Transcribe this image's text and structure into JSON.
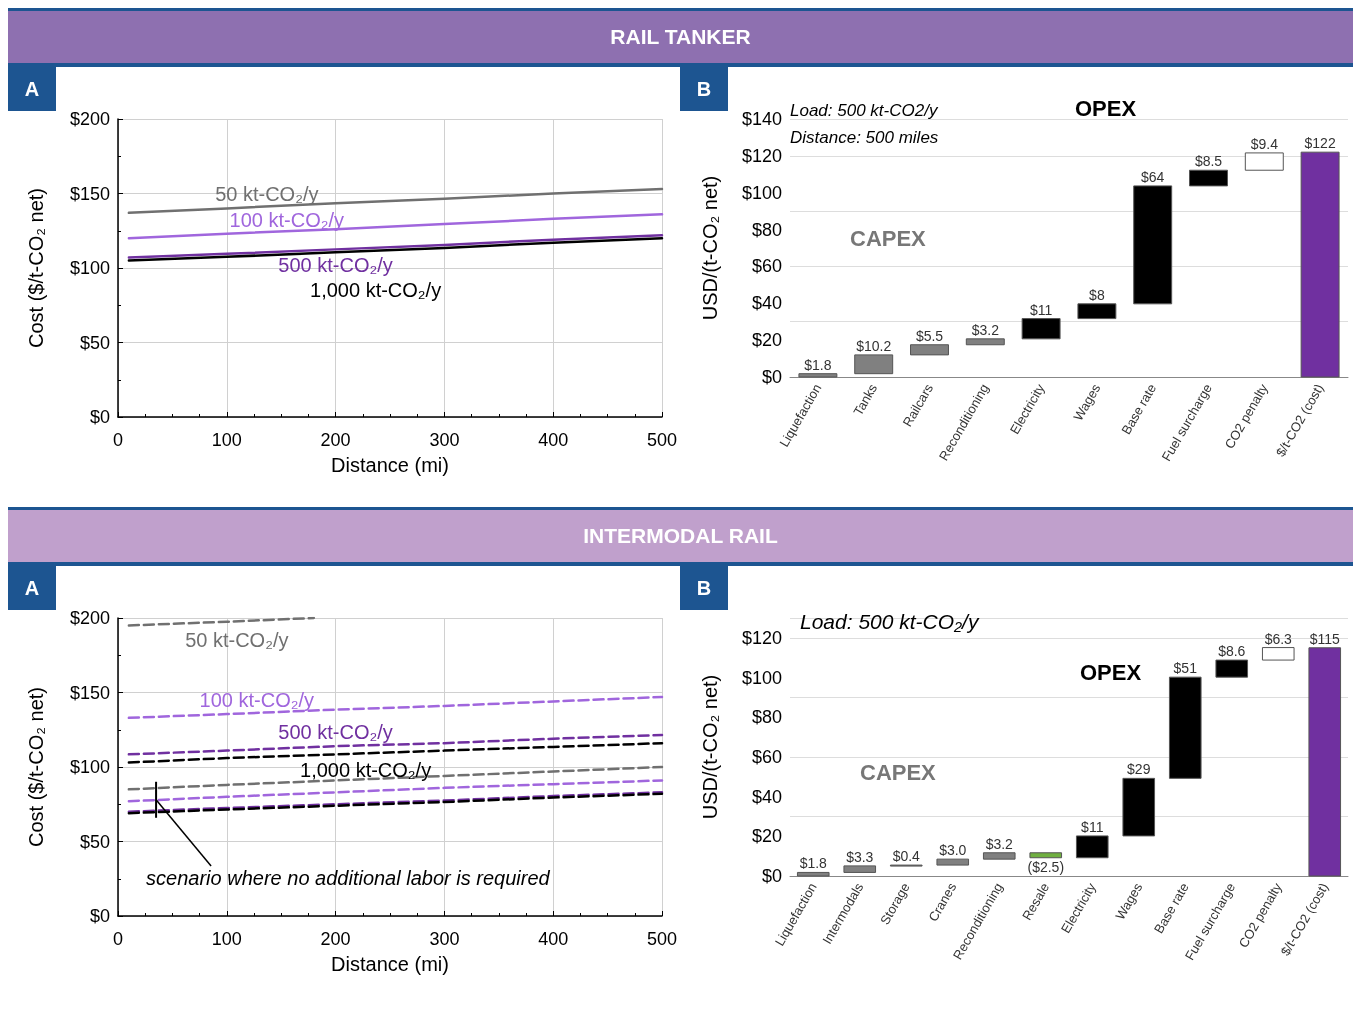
{
  "chart_data": [
    {
      "type": "line",
      "title": "RAIL TANKER",
      "subtitle": "A",
      "xlabel": "Distance (mi)",
      "ylabel": "Cost ($/t-CO₂ net)",
      "xlim": [
        0,
        500
      ],
      "xticks": [
        0,
        100,
        200,
        300,
        400,
        500
      ],
      "ylim": [
        0,
        200
      ],
      "yticks": [
        {
          "value": 0,
          "label": "$0"
        },
        {
          "value": 50,
          "label": "$50"
        },
        {
          "value": 100,
          "label": "$100"
        },
        {
          "value": 150,
          "label": "$150"
        },
        {
          "value": 200,
          "label": "$200"
        }
      ],
      "grid": true,
      "legend": false,
      "line_style": "solid",
      "x": [
        10,
        100,
        200,
        300,
        400,
        500
      ],
      "series": [
        {
          "name": "50 kt-CO₂/y",
          "color": "#707070",
          "values": [
            137,
            140,
            143.5,
            146.5,
            150,
            153
          ]
        },
        {
          "name": "100 kt-CO₂/y",
          "color": "#a066dd",
          "values": [
            120,
            123,
            126,
            129.5,
            133,
            136
          ]
        },
        {
          "name": "500 kt-CO₂/y",
          "color": "#7030a0",
          "values": [
            107,
            109.5,
            112.5,
            115.5,
            119,
            122
          ]
        },
        {
          "name": "1,000 kt-CO₂/y",
          "color": "#000000",
          "values": [
            105,
            107.5,
            110.5,
            113.5,
            117,
            120
          ]
        }
      ]
    },
    {
      "type": "bar",
      "subtitle": "B",
      "ylabel": "USD/(t-CO₂ net)",
      "categories": [
        "Liquefaction",
        "Tanks",
        "Railcars",
        "Reconditioning",
        "Electricity",
        "Wages",
        "Base rate",
        "Fuel surcharge",
        "CO2 penalty",
        "$/t-CO2 (cost)"
      ],
      "values": [
        1.8,
        10.2,
        5.5,
        3.2,
        11,
        8,
        64,
        8.5,
        9.4,
        122
      ],
      "base": [
        0,
        1.8,
        12,
        17.5,
        20.7,
        31.7,
        39.7,
        103.7,
        112.2,
        0
      ],
      "colors": [
        "#808080",
        "#808080",
        "#808080",
        "#808080",
        "#000000",
        "#000000",
        "#000000",
        "#000000",
        "#ffffff",
        "#7030a0"
      ],
      "value_labels": [
        "$1.8",
        "$10.2",
        "$5.5",
        "$3.2",
        "$11",
        "$8",
        "$64",
        "$8.5",
        "$9.4",
        "$122"
      ],
      "ylim": [
        0,
        140
      ],
      "yticks": [
        {
          "value": 0,
          "label": "$0"
        },
        {
          "value": 20,
          "label": "$20"
        },
        {
          "value": 40,
          "label": "$40"
        },
        {
          "value": 60,
          "label": "$60"
        },
        {
          "value": 80,
          "label": "$80"
        },
        {
          "value": 100,
          "label": "$100"
        },
        {
          "value": 120,
          "label": "$120"
        },
        {
          "value": 140,
          "label": "$140"
        }
      ],
      "grid": "y",
      "annotations": [
        "Load: 500 kt-CO2/y",
        "Distance: 500 miles",
        "CAPEX",
        "OPEX"
      ]
    },
    {
      "type": "line",
      "title": "INTERMODAL RAIL",
      "subtitle": "A",
      "xlabel": "Distance (mi)",
      "ylabel": "Cost ($/t-CO₂ net)",
      "xlim": [
        0,
        500
      ],
      "xticks": [
        0,
        100,
        200,
        300,
        400,
        500
      ],
      "ylim": [
        0,
        200
      ],
      "yticks": [
        {
          "value": 0,
          "label": "$0"
        },
        {
          "value": 50,
          "label": "$50"
        },
        {
          "value": 100,
          "label": "$100"
        },
        {
          "value": 150,
          "label": "$150"
        },
        {
          "value": 200,
          "label": "$200"
        }
      ],
      "grid": true,
      "legend": false,
      "line_style": "dashed",
      "x": [
        10,
        100,
        200,
        300,
        400,
        500
      ],
      "series": [
        {
          "name": "50 kt-CO₂/y",
          "color": "#707070",
          "x": [
            10,
            100,
            180
          ],
          "values": [
            195,
            197.5,
            200
          ]
        },
        {
          "name": "100 kt-CO₂/y",
          "color": "#a066dd",
          "values": [
            133,
            135.5,
            138.5,
            141,
            144,
            147
          ]
        },
        {
          "name": "500 kt-CO₂/y",
          "color": "#7030a0",
          "values": [
            108.5,
            111,
            114,
            116,
            119,
            121.5
          ]
        },
        {
          "name": "1,000 kt-CO₂/y",
          "color": "#000000",
          "values": [
            103,
            106,
            108.5,
            111,
            113.5,
            116
          ]
        },
        {
          "color": "#707070",
          "values": [
            85,
            88,
            91,
            94,
            97,
            100
          ]
        },
        {
          "color": "#a066dd",
          "values": [
            77,
            80,
            83,
            86,
            88.5,
            91
          ]
        },
        {
          "color": "#7030a0",
          "values": [
            70,
            72.5,
            75,
            77.5,
            80.5,
            83
          ]
        },
        {
          "color": "#000000",
          "values": [
            69,
            71.5,
            74,
            76.5,
            79.5,
            82
          ]
        }
      ],
      "annotations": [
        {
          "text": "scenario where no additional labor is required",
          "x": 35,
          "y": 78
        }
      ]
    },
    {
      "type": "bar",
      "subtitle": "B",
      "ylabel": "USD/(t-CO₂ net)",
      "categories": [
        "Liquefaction",
        "Intermodals",
        "Storage",
        "Cranes",
        "Reconditioning",
        "Resale",
        "Electricity",
        "Wages",
        "Base rate",
        "Fuel surcharge",
        "CO2 penalty",
        "$/t-CO2 (cost)"
      ],
      "values": [
        1.8,
        3.3,
        0.4,
        3.0,
        3.2,
        -2.5,
        11,
        29,
        51,
        8.6,
        6.3,
        115
      ],
      "base": [
        0,
        1.8,
        5.1,
        5.5,
        8.5,
        11.7,
        9.2,
        20.2,
        49.2,
        100.2,
        108.8,
        0
      ],
      "colors": [
        "#808080",
        "#808080",
        "#808080",
        "#808080",
        "#808080",
        "#70b040",
        "#000000",
        "#000000",
        "#000000",
        "#000000",
        "#ffffff",
        "#7030a0"
      ],
      "value_labels": [
        "$1.8",
        "$3.3",
        "$0.4",
        "$3.0",
        "$3.2",
        "($2.5)",
        "$11",
        "$29",
        "$51",
        "$8.6",
        "$6.3",
        "$115"
      ],
      "ylim": [
        0,
        130
      ],
      "yticks": [
        {
          "value": 0,
          "label": "$0"
        },
        {
          "value": 20,
          "label": "$20"
        },
        {
          "value": 40,
          "label": "$40"
        },
        {
          "value": 60,
          "label": "$60"
        },
        {
          "value": 80,
          "label": "$80"
        },
        {
          "value": 100,
          "label": "$100"
        },
        {
          "value": 120,
          "label": "$120"
        }
      ],
      "grid": "y",
      "annotations": [
        "Load: 500 kt-CO₂/y",
        "CAPEX",
        "OPEX"
      ]
    }
  ]
}
